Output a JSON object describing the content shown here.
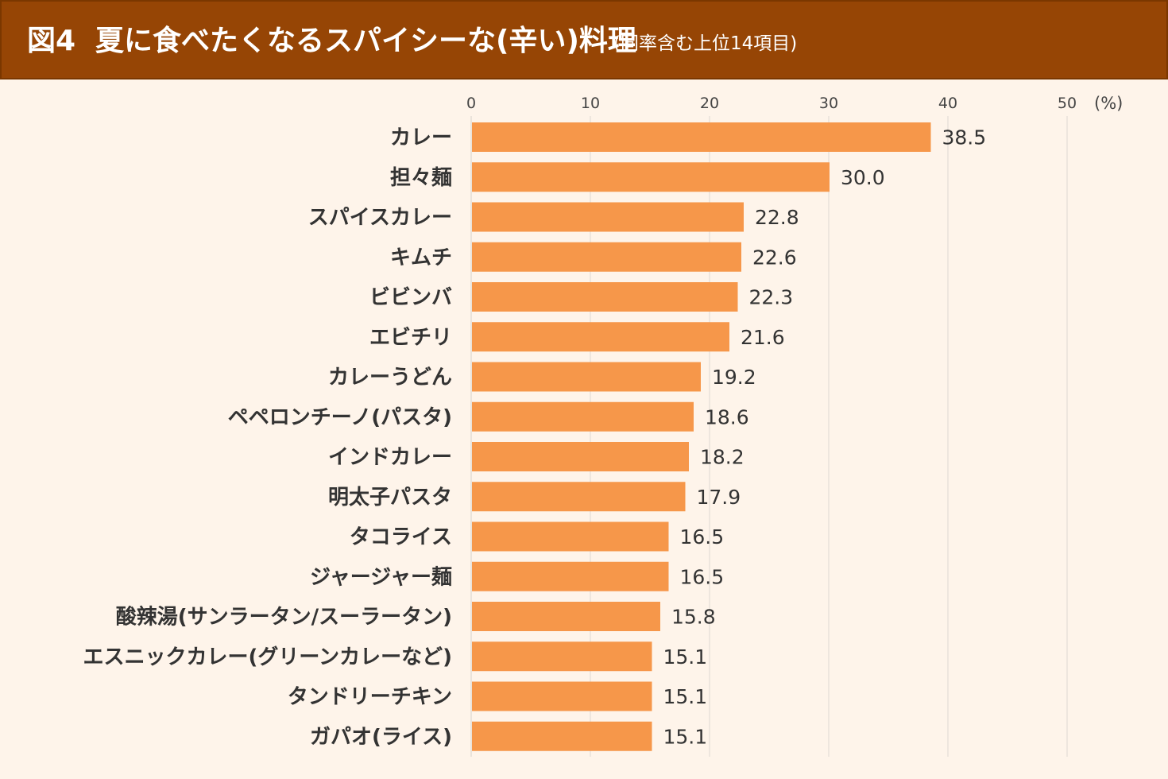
{
  "header": {
    "fig_label": "図4",
    "title": "夏に食べたくなるスパイシーな(辛い)料理",
    "subtitle": "(同率含む上位14項目)"
  },
  "colors": {
    "header_bg": "#964505",
    "page_bg": "#fef4ea",
    "bar": "#f6974a",
    "grid": "#e3ddd6"
  },
  "chart_data": {
    "type": "bar",
    "orientation": "horizontal",
    "unit": "(%)",
    "xlim": [
      0,
      50
    ],
    "ticks": [
      0,
      10,
      20,
      30,
      40,
      50
    ],
    "grid": true,
    "categories": [
      "カレー",
      "担々麺",
      "スパイスカレー",
      "キムチ",
      "ビビンバ",
      "エビチリ",
      "カレーうどん",
      "ペペロンチーノ(パスタ)",
      "インドカレー",
      "明太子パスタ",
      "タコライス",
      "ジャージャー麺",
      "酸辣湯(サンラータン/スーラータン)",
      "エスニックカレー(グリーンカレーなど)",
      "タンドリーチキン",
      "ガパオ(ライス)"
    ],
    "values": [
      38.5,
      30.0,
      22.8,
      22.6,
      22.3,
      21.6,
      19.2,
      18.6,
      18.2,
      17.9,
      16.5,
      16.5,
      15.8,
      15.1,
      15.1,
      15.1
    ],
    "value_labels": [
      "38.5",
      "30.0",
      "22.8",
      "22.6",
      "22.3",
      "21.6",
      "19.2",
      "18.6",
      "18.2",
      "17.9",
      "16.5",
      "16.5",
      "15.8",
      "15.1",
      "15.1",
      "15.1"
    ]
  }
}
